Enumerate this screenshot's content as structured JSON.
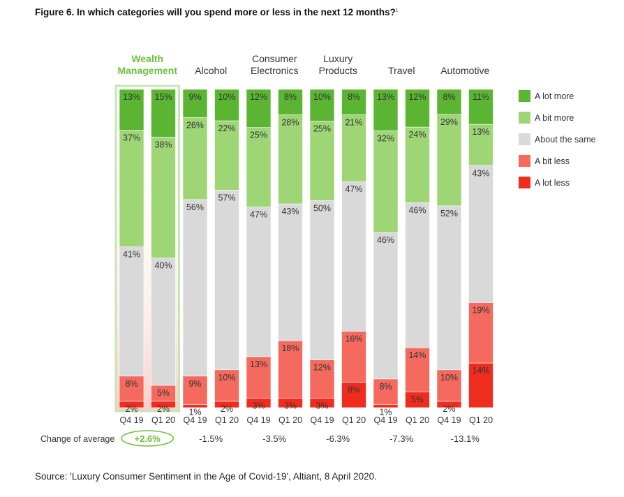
{
  "figure": {
    "title": "Figure 6. In which categories will you spend more or less in the next 12 months?",
    "title_footnote": "1",
    "source": "Source: 'Luxury Consumer Sentiment in the Age of Covid-19', Altiant, 8 April 2020."
  },
  "chart_data": {
    "type": "bar",
    "stacked": true,
    "percent_stacked": true,
    "ylim": [
      0,
      100
    ],
    "grid": false,
    "legend_position": "right",
    "categories": [
      "Wealth Management",
      "Alcohol",
      "Consumer Electronics",
      "Luxury Products",
      "Travel",
      "Automotive"
    ],
    "category_labels": [
      [
        "Wealth",
        "Management"
      ],
      [
        "Alcohol"
      ],
      [
        "Consumer",
        "Electronics"
      ],
      [
        "Luxury",
        "Products"
      ],
      [
        "Travel"
      ],
      [
        "Automotive"
      ]
    ],
    "periods": [
      "Q4 19",
      "Q1 20"
    ],
    "x": [
      "Q4 19",
      "Q1 20",
      "Q4 19",
      "Q1 20",
      "Q4 19",
      "Q1 20",
      "Q4 19",
      "Q1 20",
      "Q4 19",
      "Q1 20",
      "Q4 19",
      "Q1 20"
    ],
    "highlight_category": "Wealth Management",
    "series": [
      {
        "name": "A lot more",
        "color": "#5bb533",
        "values": [
          13,
          15,
          9,
          10,
          12,
          8,
          10,
          8,
          13,
          12,
          8,
          11
        ]
      },
      {
        "name": "A bit more",
        "color": "#9ed676",
        "values": [
          37,
          38,
          26,
          22,
          25,
          28,
          25,
          21,
          32,
          24,
          29,
          13
        ]
      },
      {
        "name": "About the same",
        "color": "#d9d9d9",
        "values": [
          41,
          40,
          56,
          57,
          47,
          43,
          50,
          47,
          46,
          46,
          52,
          43
        ]
      },
      {
        "name": "A bit less",
        "color": "#f46a5e",
        "values": [
          8,
          5,
          9,
          10,
          13,
          18,
          12,
          16,
          8,
          14,
          10,
          19
        ]
      },
      {
        "name": "A lot less",
        "color": "#ee2d1f",
        "values": [
          2,
          2,
          1,
          2,
          3,
          3,
          3,
          8,
          1,
          5,
          2,
          14
        ]
      }
    ],
    "change_label": "Change of average",
    "change_of_average": [
      "+2.6%",
      "-1.5%",
      "-3.5%",
      "-6.3%",
      "-7.3%",
      "-13.1%"
    ],
    "colors": {
      "highlight_text": "#6cc03a",
      "highlight_frame": "#c6e6b4"
    }
  }
}
